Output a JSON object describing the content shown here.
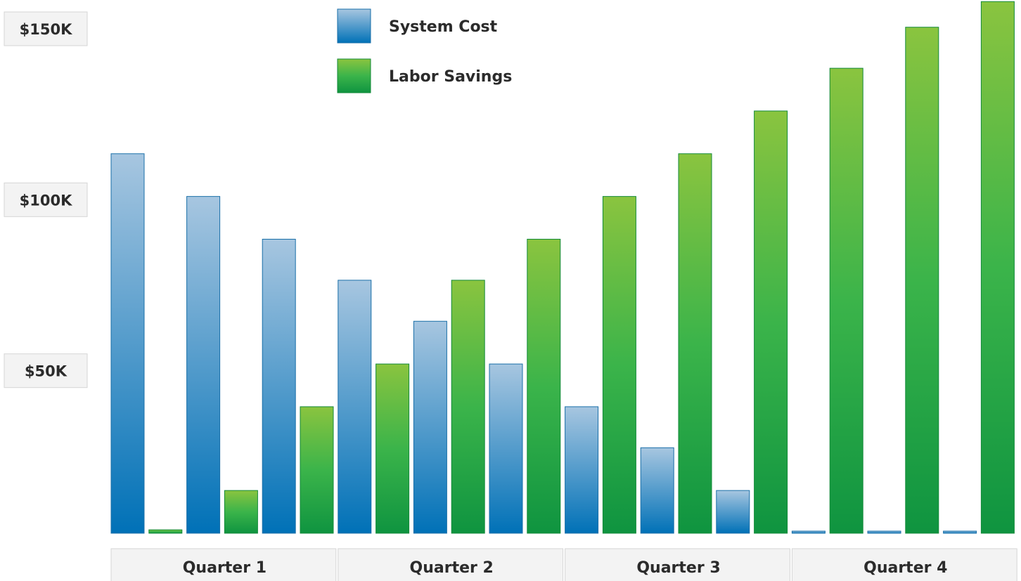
{
  "chart_data": {
    "type": "bar",
    "title": "",
    "ylabel": "",
    "xlabel": "",
    "ylim": [
      0,
      155
    ],
    "y_ticks": [
      {
        "value": 150,
        "label": "$150K"
      },
      {
        "value": 100,
        "label": "$100K"
      },
      {
        "value": 50,
        "label": "$50K"
      }
    ],
    "grid": false,
    "legend_position": "top-center",
    "groups": [
      {
        "label": "Quarter 1",
        "months": 3
      },
      {
        "label": "Quarter 2",
        "months": 3
      },
      {
        "label": "Quarter 3",
        "months": 3
      },
      {
        "label": "Quarter 4",
        "months": 3
      }
    ],
    "series": [
      {
        "name": "System Cost",
        "color": "#0a77b8",
        "values": [
          111,
          98.5,
          86,
          74,
          62,
          49.5,
          37,
          25,
          12.5,
          0.5,
          0.5,
          0.5
        ]
      },
      {
        "name": "Labor Savings",
        "color": "#1e9e3e",
        "values": [
          1,
          12.5,
          37,
          49.5,
          74,
          86,
          98.5,
          111,
          123.5,
          136,
          148,
          155.5
        ]
      }
    ]
  }
}
